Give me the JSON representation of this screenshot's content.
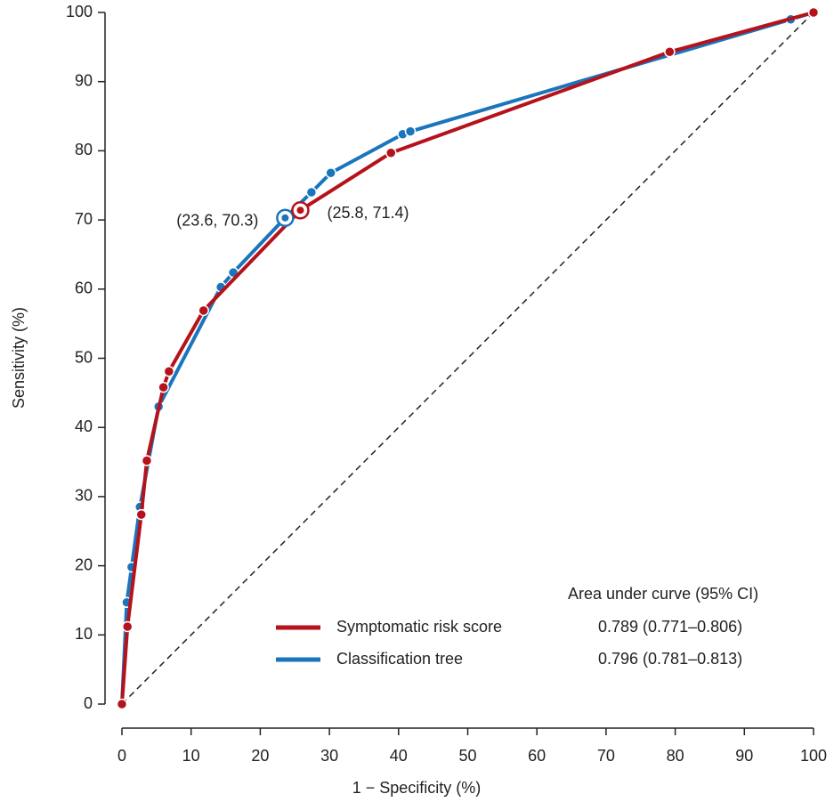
{
  "chart_data": {
    "type": "line",
    "xlabel": "1 − Specificity (%)",
    "ylabel": "Sensitivity (%)",
    "xlim": [
      0,
      100
    ],
    "ylim": [
      0,
      100
    ],
    "xticks": [
      0,
      10,
      20,
      30,
      40,
      50,
      60,
      70,
      80,
      90,
      100
    ],
    "yticks": [
      0,
      10,
      20,
      30,
      40,
      50,
      60,
      70,
      80,
      90,
      100
    ],
    "grid": false,
    "legend_title": "Area under curve (95% CI)",
    "series": [
      {
        "name": "Symptomatic risk score",
        "color": "#b5121b",
        "auc": "0.789 (0.771–0.806)",
        "x": [
          0,
          0.8,
          2.8,
          3.6,
          6.0,
          6.8,
          11.8,
          25.8,
          38.9,
          79.2,
          100
        ],
        "values": [
          0,
          11.2,
          27.4,
          35.2,
          45.8,
          48.1,
          56.9,
          71.4,
          79.7,
          94.3,
          100
        ]
      },
      {
        "name": "Classification tree",
        "color": "#1a75bc",
        "auc": "0.796 (0.781–0.813)",
        "x": [
          0,
          0.7,
          1.4,
          2.6,
          5.3,
          14.3,
          16.1,
          23.6,
          27.4,
          30.2,
          40.6,
          41.7,
          96.7,
          100
        ],
        "values": [
          0,
          14.7,
          19.8,
          28.5,
          43.0,
          60.3,
          62.4,
          70.3,
          74.0,
          76.8,
          82.4,
          82.8,
          99.0,
          100
        ]
      }
    ],
    "annotations": [
      {
        "text": "(23.6, 70.3)",
        "x": 23.6,
        "y": 70.3,
        "series": 1
      },
      {
        "text": "(25.8, 71.4)",
        "x": 25.8,
        "y": 71.4,
        "series": 0
      }
    ]
  }
}
